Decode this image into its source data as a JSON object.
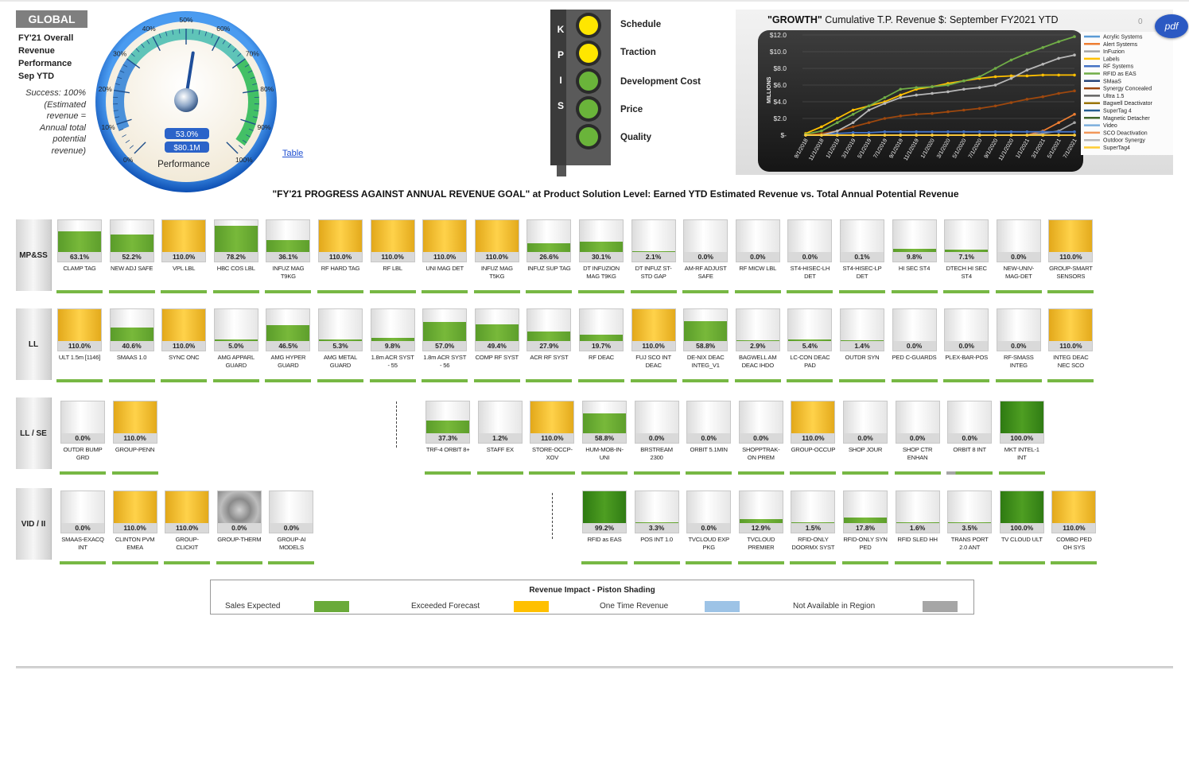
{
  "header": {
    "global": "GLOBAL",
    "title_lines": [
      "FY'21 Overall",
      "Revenue",
      "Performance",
      "Sep YTD"
    ],
    "success_lines": [
      "Success: 100%",
      "(Estimated",
      "revenue =",
      "Annual total",
      "potential",
      "revenue)"
    ],
    "table_link": "Table"
  },
  "gauge": {
    "ticks": [
      "0%",
      "10%",
      "20%",
      "30%",
      "40%",
      "50%",
      "60%",
      "70%",
      "80%",
      "90%",
      "100%"
    ],
    "value_pct": 53.0,
    "value_label": "53.0%",
    "amount_label": "$80.1M",
    "caption": "Performance",
    "colors": {
      "ring": "#1f6fd6",
      "low": "#4a90d9",
      "mid": "#5fc4b8",
      "high": "#43c066"
    }
  },
  "kpis": {
    "letters": [
      "K",
      "P",
      "I",
      "S"
    ],
    "items": [
      {
        "label": "Schedule",
        "status": "yellow"
      },
      {
        "label": "Traction",
        "status": "yellow"
      },
      {
        "label": "Development Cost",
        "status": "green"
      },
      {
        "label": "Price",
        "status": "green"
      },
      {
        "label": "Quality",
        "status": "green"
      }
    ],
    "status_colors": {
      "yellow": "#ffe600",
      "green": "#6ab43a"
    }
  },
  "growth_chart": {
    "title_quoted": "\"GROWTH\"",
    "title_rest": " Cumulative T.P. Revenue $: September FY2021 YTD",
    "corner_value": "0",
    "pdf_label": "pdf"
  },
  "chart_data": {
    "type": "line",
    "title": "\"GROWTH\" Cumulative T.P. Revenue $: September FY2021 YTD",
    "ylabel": "MILLIONS",
    "ylim": [
      0,
      12
    ],
    "y_ticks": [
      "$12.0",
      "$10.0",
      "$8.0",
      "$6.0",
      "$4.0",
      "$2.0",
      "$-"
    ],
    "x": [
      "9/1/2018",
      "11/1/2018",
      "1/1/2019",
      "3/1/2019",
      "5/1/2019",
      "7/1/2019",
      "9/1/2019",
      "11/1/2019",
      "1/1/2020",
      "3/1/2020",
      "5/1/2020",
      "7/1/2020",
      "9/1/2020",
      "11/1/2020",
      "1/1/2021",
      "3/1/2021",
      "5/1/2021",
      "7/1/2021"
    ],
    "legend_placement": "right",
    "series": [
      {
        "name": "Acrylic Systems",
        "color": "#5b9bd5",
        "values": [
          0,
          0,
          0,
          0,
          0,
          0,
          0,
          0,
          0,
          0,
          0,
          0,
          0,
          0,
          0,
          0,
          0,
          0
        ]
      },
      {
        "name": "Alert Systems",
        "color": "#ed7d31",
        "values": [
          0,
          0,
          0,
          0,
          0,
          0,
          0,
          0,
          0,
          0,
          0,
          0,
          0,
          0,
          0,
          0.5,
          1.5,
          2.5
        ]
      },
      {
        "name": "InFuzion",
        "color": "#a5a5a5",
        "values": [
          0,
          0,
          0,
          0,
          0,
          0,
          0,
          0,
          0,
          0,
          0,
          0,
          0,
          0,
          0,
          0.2,
          0.5,
          1.5
        ]
      },
      {
        "name": "Labels",
        "color": "#ffc000",
        "values": [
          0.2,
          1,
          2,
          3,
          3.5,
          4,
          4.8,
          5.5,
          5.8,
          6.2,
          6.5,
          6.8,
          7,
          7.1,
          7.1,
          7.2,
          7.2,
          7.2
        ]
      },
      {
        "name": "RF Systems",
        "color": "#4472c4",
        "values": [
          0,
          0.1,
          0.2,
          0.3,
          0.3,
          0.4,
          0.4,
          0.4,
          0.4,
          0.4,
          0.4,
          0.4,
          0.4,
          0.4,
          0.4,
          0.4,
          0.4,
          0.4
        ]
      },
      {
        "name": "RFID as EAS",
        "color": "#70ad47",
        "values": [
          0.1,
          0.5,
          1.5,
          2.5,
          3.5,
          4.5,
          5.5,
          5.7,
          5.8,
          6.0,
          6.5,
          7.0,
          8.0,
          9.0,
          9.8,
          10.5,
          11.2,
          11.8
        ]
      },
      {
        "name": "SMaaS",
        "color": "#264478",
        "values": [
          0,
          0,
          0,
          0,
          0,
          0,
          0,
          0,
          0,
          0,
          0,
          0,
          0,
          0,
          0,
          0,
          0,
          0
        ]
      },
      {
        "name": "Synergy Concealed",
        "color": "#9e480e",
        "values": [
          0,
          0.2,
          0.5,
          1,
          1.5,
          2,
          2.3,
          2.5,
          2.6,
          2.8,
          3,
          3.2,
          3.5,
          3.9,
          4.3,
          4.6,
          5,
          5.3
        ]
      },
      {
        "name": "Ultra 1.5",
        "color": "#636363",
        "values": [
          0,
          0,
          0,
          0,
          0,
          0,
          0,
          0,
          0,
          0,
          0,
          0,
          0,
          0,
          0,
          0,
          0,
          0
        ]
      },
      {
        "name": "Bagwell Deactivator",
        "color": "#997300",
        "values": [
          0,
          0,
          0,
          0,
          0,
          0,
          0,
          0,
          0,
          0,
          0,
          0,
          0,
          0,
          0,
          0,
          0,
          0
        ]
      },
      {
        "name": "SuperTag 4",
        "color": "#255e91",
        "values": [
          0,
          0,
          0,
          0,
          0,
          0,
          0,
          0,
          0,
          0,
          0,
          0,
          0,
          0,
          0,
          0,
          0,
          0
        ]
      },
      {
        "name": "Magnetic Detacher",
        "color": "#43682b",
        "values": [
          0,
          0,
          0,
          0,
          0,
          0,
          0,
          0,
          0,
          0,
          0,
          0,
          0,
          0,
          0,
          0,
          0,
          0
        ]
      },
      {
        "name": "Video",
        "color": "#7cafdd",
        "values": [
          0,
          0,
          0,
          0,
          0,
          0,
          0,
          0,
          0,
          0,
          0,
          0,
          0,
          0,
          0,
          0,
          0,
          0
        ]
      },
      {
        "name": "SCO Deactivation",
        "color": "#f1975a",
        "values": [
          0,
          0,
          0,
          0,
          0,
          0,
          0,
          0,
          0,
          0,
          0,
          0,
          0,
          0,
          0,
          0,
          0,
          0
        ]
      },
      {
        "name": "Outdoor Synergy",
        "color": "#b7b7b7",
        "values": [
          0,
          0,
          0.5,
          1.5,
          3,
          3.8,
          4.5,
          4.8,
          5,
          5.2,
          5.5,
          5.7,
          6,
          6.8,
          7.8,
          8.5,
          9.2,
          9.6
        ]
      },
      {
        "name": "SuperTag4",
        "color": "#ffcd33",
        "values": [
          0,
          0,
          0,
          0,
          0,
          0,
          0,
          0,
          0,
          0,
          0,
          0,
          0,
          0,
          0,
          0,
          0,
          0
        ]
      }
    ]
  },
  "progress": {
    "title_quoted": "\"FY'21 PROGRESS AGAINST ANNUAL REVENUE GOAL\"",
    "title_rest": " at Product Solution Level: Earned YTD Estimated Revenue vs. Total Annual Potential Revenue"
  },
  "rows": [
    {
      "name": "MP&SS",
      "tiles": [
        {
          "label": "CLAMP TAG",
          "pct": "63.1%",
          "value": 63.1,
          "type": "green"
        },
        {
          "label": "NEW ADJ SAFE",
          "pct": "52.2%",
          "value": 52.2,
          "type": "green"
        },
        {
          "label": "VPL LBL",
          "pct": "110.0%",
          "value": 110,
          "type": "gold"
        },
        {
          "label": "HBC COS LBL",
          "pct": "78.2%",
          "value": 78.2,
          "type": "green"
        },
        {
          "label": "INFUZ MAG T9KG",
          "pct": "36.1%",
          "value": 36.1,
          "type": "green"
        },
        {
          "label": "RF HARD TAG",
          "pct": "110.0%",
          "value": 110,
          "type": "gold"
        },
        {
          "label": "RF LBL",
          "pct": "110.0%",
          "value": 110,
          "type": "gold"
        },
        {
          "label": "UNI MAG DET",
          "pct": "110.0%",
          "value": 110,
          "type": "gold"
        },
        {
          "label": "INFUZ MAG T5KG",
          "pct": "110.0%",
          "value": 110,
          "type": "gold"
        },
        {
          "label": "INFUZ SUP TAG",
          "pct": "26.6%",
          "value": 26.6,
          "type": "green"
        },
        {
          "label": "DT INFUZION MAG T9KG",
          "pct": "30.1%",
          "value": 30.1,
          "type": "green"
        },
        {
          "label": "DT INFUZ ST-STD GAP",
          "pct": "2.1%",
          "value": 2.1,
          "type": "green"
        },
        {
          "label": "AM-RF ADJUST SAFE",
          "pct": "0.0%",
          "value": 0,
          "type": "green"
        },
        {
          "label": "RF MICW LBL",
          "pct": "0.0%",
          "value": 0,
          "type": "green"
        },
        {
          "label": "ST4-HISEC-LH DET",
          "pct": "0.0%",
          "value": 0,
          "type": "green"
        },
        {
          "label": "ST4-HISEC-LP DET",
          "pct": "0.1%",
          "value": 0.1,
          "type": "green"
        },
        {
          "label": "HI SEC ST4",
          "pct": "9.8%",
          "value": 9.8,
          "type": "green"
        },
        {
          "label": "DTECH HI SEC ST4",
          "pct": "7.1%",
          "value": 7.1,
          "type": "green"
        },
        {
          "label": "NEW-UNIV-MAG-DET",
          "pct": "0.0%",
          "value": 0,
          "type": "green"
        },
        {
          "label": "GROUP-SMART SENSORS",
          "pct": "110.0%",
          "value": 110,
          "type": "gold"
        }
      ]
    },
    {
      "name": "LL",
      "tiles": [
        {
          "label": "ULT 1.5m [1146]",
          "pct": "110.0%",
          "value": 110,
          "type": "gold"
        },
        {
          "label": "SMAAS 1.0",
          "pct": "40.6%",
          "value": 40.6,
          "type": "green"
        },
        {
          "label": "SYNC ONC",
          "pct": "110.0%",
          "value": 110,
          "type": "gold"
        },
        {
          "label": "AMG APPARL GUARD",
          "pct": "5.0%",
          "value": 5,
          "type": "green"
        },
        {
          "label": "AMG HYPER GUARD",
          "pct": "46.5%",
          "value": 46.5,
          "type": "green"
        },
        {
          "label": "AMG METAL GUARD",
          "pct": "5.3%",
          "value": 5.3,
          "type": "green"
        },
        {
          "label": "1.8m ACR SYST - 55",
          "pct": "9.8%",
          "value": 9.8,
          "type": "green"
        },
        {
          "label": "1.8m ACR SYST - 56",
          "pct": "57.0%",
          "value": 57,
          "type": "green"
        },
        {
          "label": "COMP RF SYST",
          "pct": "49.4%",
          "value": 49.4,
          "type": "green"
        },
        {
          "label": "ACR RF SYST",
          "pct": "27.9%",
          "value": 27.9,
          "type": "green"
        },
        {
          "label": "RF DEAC",
          "pct": "19.7%",
          "value": 19.7,
          "type": "green"
        },
        {
          "label": "FUJ SCO INT DEAC",
          "pct": "110.0%",
          "value": 110,
          "type": "gold"
        },
        {
          "label": "DE-NIX DEAC INTEG_V1",
          "pct": "58.8%",
          "value": 58.8,
          "type": "green"
        },
        {
          "label": "BAGWELL AM DEAC IHDO",
          "pct": "2.9%",
          "value": 2.9,
          "type": "green"
        },
        {
          "label": "LC-CON DEAC PAD",
          "pct": "5.4%",
          "value": 5.4,
          "type": "green"
        },
        {
          "label": "OUTDR SYN",
          "pct": "1.4%",
          "value": 1.4,
          "type": "green"
        },
        {
          "label": "PED C-GUARDS",
          "pct": "0.0%",
          "value": 0,
          "type": "green"
        },
        {
          "label": "PLEX-BAR-POS",
          "pct": "0.0%",
          "value": 0,
          "type": "green"
        },
        {
          "label": "RF-SMASS INTEG",
          "pct": "0.0%",
          "value": 0,
          "type": "green"
        },
        {
          "label": "INTEG DEAC NEC SCO",
          "pct": "110.0%",
          "value": 110,
          "type": "gold"
        }
      ]
    },
    {
      "name": "LL / SE",
      "tiles": [
        {
          "label": "OUTDR BUMP GRD",
          "pct": "0.0%",
          "value": 0,
          "type": "green"
        },
        {
          "label": "GROUP-PENN",
          "pct": "110.0%",
          "value": 110,
          "type": "gold"
        },
        {
          "label": "TRF-4 ORBIT 8+",
          "pct": "37.3%",
          "value": 37.3,
          "type": "green"
        },
        {
          "label": "STAFF EX",
          "pct": "1.2%",
          "value": 1.2,
          "type": "green"
        },
        {
          "label": "STORE-OCCP-XOV",
          "pct": "110.0%",
          "value": 110,
          "type": "gold"
        },
        {
          "label": "HUM-MOB-IN-UNI",
          "pct": "58.8%",
          "value": 58.8,
          "type": "green"
        },
        {
          "label": "BRSTREAM 2300",
          "pct": "0.0%",
          "value": 0,
          "type": "green"
        },
        {
          "label": "ORBIT 5.1MIN",
          "pct": "0.0%",
          "value": 0,
          "type": "green"
        },
        {
          "label": "SHOPPTRAK-ON PREM",
          "pct": "0.0%",
          "value": 0,
          "type": "green"
        },
        {
          "label": "GROUP-OCCUP",
          "pct": "110.0%",
          "value": 110,
          "type": "gold"
        },
        {
          "label": "SHOP JOUR",
          "pct": "0.0%",
          "value": 0,
          "type": "green"
        },
        {
          "label": "SHOP CTR ENHAN",
          "pct": "0.0%",
          "value": 0,
          "type": "green"
        },
        {
          "label": "ORBIT 8 INT",
          "pct": "0.0%",
          "value": 0,
          "type": "green"
        },
        {
          "label": "MKT INTEL-1 INT",
          "pct": "100.0%",
          "value": 100,
          "type": "dark"
        }
      ]
    },
    {
      "name": "VID / II",
      "tiles": [
        {
          "label": "SMAAS-EXACQ INT",
          "pct": "0.0%",
          "value": 0,
          "type": "green"
        },
        {
          "label": "CLINTON PVM EMEA",
          "pct": "110.0%",
          "value": 110,
          "type": "gold"
        },
        {
          "label": "GROUP-CLICKIT",
          "pct": "110.0%",
          "value": 110,
          "type": "gold"
        },
        {
          "label": "GROUP-THERM",
          "pct": "0.0%",
          "value": 0,
          "type": "thermal"
        },
        {
          "label": "GROUP-AI MODELS",
          "pct": "0.0%",
          "value": 0,
          "type": "green"
        },
        {
          "label": "RFID as EAS",
          "pct": "99.2%",
          "value": 99.2,
          "type": "dark"
        },
        {
          "label": "POS INT 1.0",
          "pct": "3.3%",
          "value": 3.3,
          "type": "green"
        },
        {
          "label": "TVCLOUD EXP PKG",
          "pct": "0.0%",
          "value": 0,
          "type": "green"
        },
        {
          "label": "TVCLOUD PREMIER",
          "pct": "12.9%",
          "value": 12.9,
          "type": "green"
        },
        {
          "label": "RFID-ONLY DOORMX SYST",
          "pct": "1.5%",
          "value": 1.5,
          "type": "green"
        },
        {
          "label": "RFID-ONLY SYN PED",
          "pct": "17.8%",
          "value": 17.8,
          "type": "green"
        },
        {
          "label": "RFID SLED HH",
          "pct": "1.6%",
          "value": 1.6,
          "type": "green"
        },
        {
          "label": "TRANS PORT 2.0 ANT",
          "pct": "3.5%",
          "value": 3.5,
          "type": "green"
        },
        {
          "label": "TV CLOUD ULT",
          "pct": "100.0%",
          "value": 100,
          "type": "dark"
        },
        {
          "label": "COMBO PED OH SYS",
          "pct": "110.0%",
          "value": 110,
          "type": "gold"
        }
      ]
    }
  ],
  "legend": {
    "title": "Revenue Impact - Piston Shading",
    "items": [
      {
        "label": "Sales Expected",
        "color": "#6aaa3a"
      },
      {
        "label": "Exceeded Forecast",
        "color": "#ffc000"
      },
      {
        "label": "One Time Revenue",
        "color": "#9dc3e6"
      },
      {
        "label": "Not Available in Region",
        "color": "#a6a6a6"
      }
    ]
  }
}
